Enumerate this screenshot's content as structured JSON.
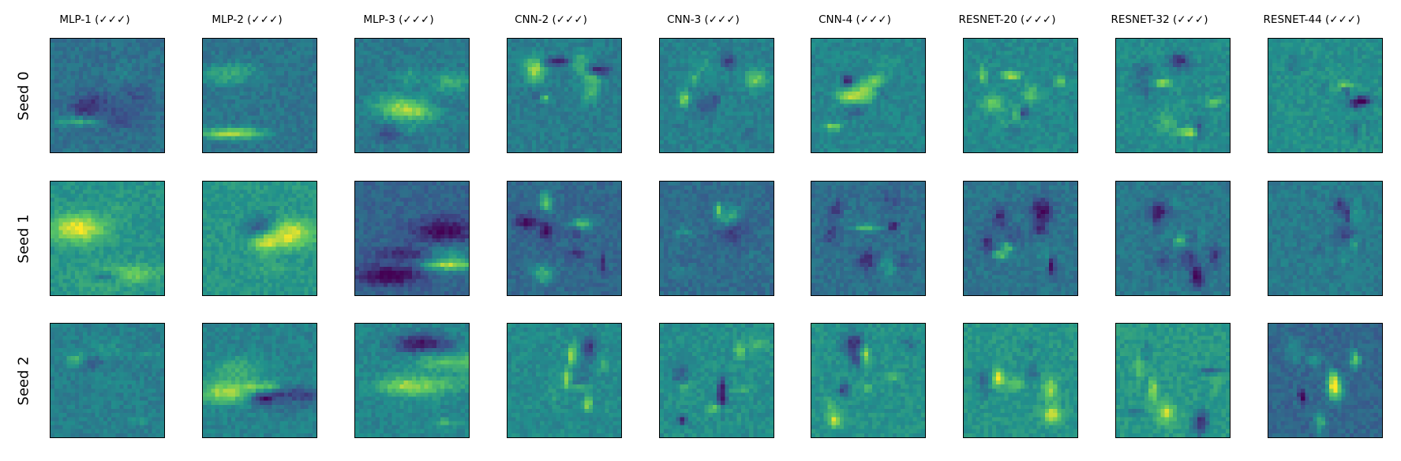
{
  "column_titles": [
    "MLP-1 (✓✓✓)",
    "MLP-2 (✓✓✓)",
    "MLP-3 (✓✓✓)",
    "CNN-2 (✓✓✓)",
    "CNN-3 (✓✓✓)",
    "CNN-4 (✓✓✓)",
    "RESNET-20 (✓✓✓)",
    "RESNET-32 (✓✓✓)",
    "RESNET-44 (✓✓✓)"
  ],
  "row_labels": [
    "Seed 0",
    "Seed 1",
    "Seed 2"
  ],
  "colormap": [
    "#440154",
    "#3b528b",
    "#21918c",
    "#5ec962",
    "#fde725"
  ]
}
